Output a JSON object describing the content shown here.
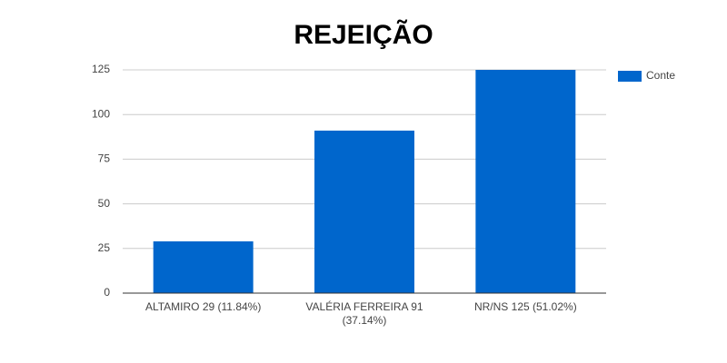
{
  "chart_data": {
    "type": "bar",
    "title": "REJEIÇÃO",
    "categories": [
      "ALTAMIRO 29 (11.84%)",
      "VALÉRIA FERREIRA 91 (37.14%)",
      "NR/NS 125 (51.02%)"
    ],
    "series": [
      {
        "name": "Conte",
        "color": "#0066cc",
        "values": [
          29,
          91,
          125
        ]
      }
    ],
    "ylim": [
      0,
      125
    ],
    "yticks": [
      0,
      25,
      50,
      75,
      100,
      125
    ],
    "grid": true,
    "legend": "right"
  }
}
